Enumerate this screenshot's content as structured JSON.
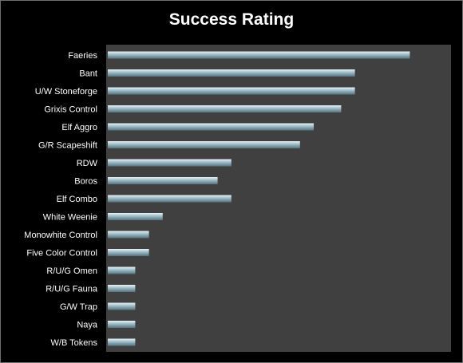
{
  "chart_data": {
    "type": "bar",
    "orientation": "horizontal",
    "title": "Success Rating",
    "xlabel": "",
    "ylabel": "",
    "categories": [
      "Faeries",
      "Bant",
      "U/W Stoneforge",
      "Grixis Control",
      "Elf Aggro",
      "G/R Scapeshift",
      "RDW",
      "Boros",
      "Elf Combo",
      "White Weenie",
      "Monowhite Control",
      "Five Color Control",
      "R/U/G Omen",
      "R/U/G Fauna",
      "G/W Trap",
      "Naya",
      "W/B Tokens"
    ],
    "values": [
      22,
      18,
      18,
      17,
      15,
      14,
      9,
      8,
      9,
      4,
      3,
      3,
      2,
      2,
      2,
      2,
      2
    ],
    "xlim": [
      0,
      25
    ],
    "grid": false,
    "legend": "none",
    "colors": {
      "background": "#000000",
      "plot_area": "#404040",
      "bar_light": "#eaf4f7",
      "bar_mid": "#a9c6d1",
      "bar_dark": "#54747f",
      "text": "#ffffff"
    }
  }
}
